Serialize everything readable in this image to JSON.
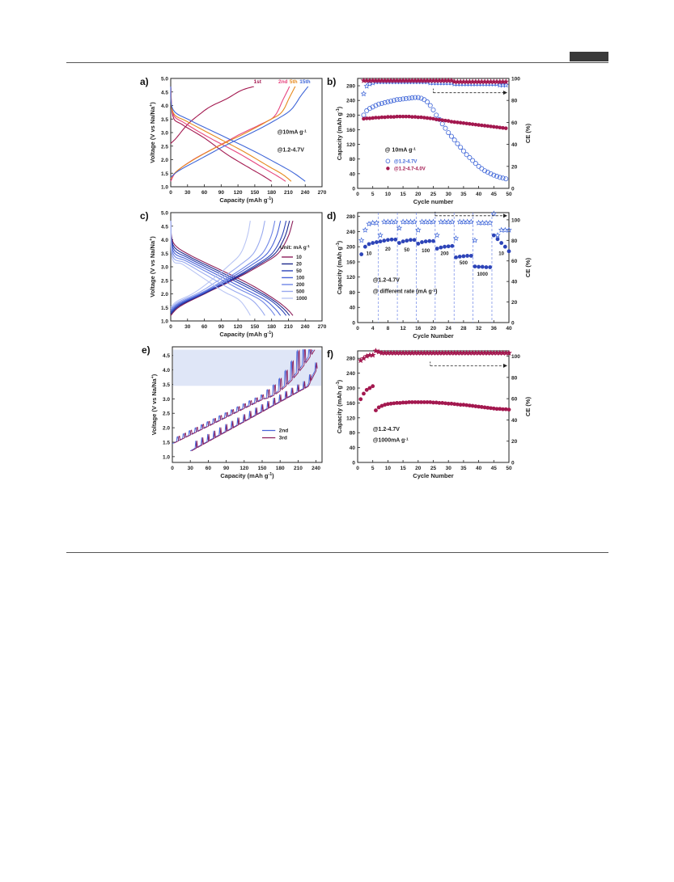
{
  "chart_data": [
    {
      "panel": "a)",
      "type": "line",
      "xlabel": "Capacity (mAh g",
      "xlabel_sup": "-1",
      "xlabel_end": ")",
      "ylabel": "Voltage (V vs Na/Na",
      "ylabel_sup": "+",
      "ylabel_end": ")",
      "xlim": [
        0,
        270
      ],
      "ylim": [
        1.0,
        5.0
      ],
      "xticks": [
        "0",
        "30",
        "60",
        "90",
        "120",
        "150",
        "180",
        "210",
        "240",
        "270"
      ],
      "yticks": [
        "1.0",
        "1.5",
        "2.0",
        "2.5",
        "3.0",
        "3.5",
        "4.0",
        "4.5",
        "5.0"
      ],
      "curve_labels": [
        {
          "text": "1st",
          "color": "#a3184f",
          "x": 148,
          "y": 4.82
        },
        {
          "text": "2nd",
          "color": "#e6457f",
          "x": 192,
          "y": 4.82
        },
        {
          "text": "5th",
          "color": "#e68a1e",
          "x": 212,
          "y": 4.82
        },
        {
          "text": "15th",
          "color": "#3f66d8",
          "x": 230,
          "y": 4.82
        }
      ],
      "annotations": [
        {
          "text": "@10mA g",
          "sup": "-1",
          "x": 190,
          "y": 2.95
        },
        {
          "text": "@1.2-4.7V",
          "x": 190,
          "y": 2.3
        }
      ],
      "series": [
        {
          "color": "#a3184f",
          "charge": [
            [
              0,
              2.6
            ],
            [
              10,
              2.8
            ],
            [
              30,
              3.3
            ],
            [
              50,
              3.65
            ],
            [
              70,
              3.95
            ],
            [
              100,
              4.25
            ],
            [
              125,
              4.55
            ],
            [
              148,
              4.7
            ]
          ],
          "discharge": [
            [
              0,
              4.7
            ],
            [
              4,
              3.6
            ],
            [
              20,
              3.3
            ],
            [
              60,
              2.8
            ],
            [
              100,
              2.2
            ],
            [
              140,
              1.7
            ],
            [
              165,
              1.4
            ],
            [
              180,
              1.2
            ]
          ]
        },
        {
          "color": "#e6457f",
          "charge": [
            [
              0,
              1.2
            ],
            [
              10,
              1.55
            ],
            [
              40,
              2.0
            ],
            [
              80,
              2.45
            ],
            [
              120,
              2.9
            ],
            [
              160,
              3.3
            ],
            [
              185,
              3.6
            ],
            [
              200,
              4.2
            ],
            [
              212,
              4.7
            ]
          ],
          "discharge": [
            [
              0,
              4.7
            ],
            [
              4,
              3.7
            ],
            [
              25,
              3.35
            ],
            [
              70,
              2.8
            ],
            [
              120,
              2.25
            ],
            [
              165,
              1.7
            ],
            [
              190,
              1.4
            ],
            [
              205,
              1.2
            ]
          ]
        },
        {
          "color": "#e68a1e",
          "charge": [
            [
              0,
              1.3
            ],
            [
              12,
              1.6
            ],
            [
              45,
              2.05
            ],
            [
              90,
              2.55
            ],
            [
              135,
              3.0
            ],
            [
              175,
              3.45
            ],
            [
              198,
              3.75
            ],
            [
              212,
              4.3
            ],
            [
              222,
              4.7
            ]
          ],
          "discharge": [
            [
              0,
              4.7
            ],
            [
              4,
              3.75
            ],
            [
              30,
              3.4
            ],
            [
              80,
              2.85
            ],
            [
              130,
              2.3
            ],
            [
              175,
              1.75
            ],
            [
              200,
              1.45
            ],
            [
              215,
              1.2
            ]
          ]
        },
        {
          "color": "#3f66d8",
          "charge": [
            [
              0,
              1.35
            ],
            [
              15,
              1.6
            ],
            [
              55,
              2.05
            ],
            [
              100,
              2.55
            ],
            [
              150,
              3.05
            ],
            [
              190,
              3.5
            ],
            [
              215,
              3.85
            ],
            [
              232,
              4.35
            ],
            [
              245,
              4.7
            ]
          ],
          "discharge": [
            [
              0,
              4.7
            ],
            [
              4,
              3.85
            ],
            [
              35,
              3.45
            ],
            [
              90,
              2.9
            ],
            [
              145,
              2.35
            ],
            [
              195,
              1.8
            ],
            [
              220,
              1.5
            ],
            [
              240,
              1.2
            ]
          ]
        }
      ]
    },
    {
      "panel": "b)",
      "type": "scatter",
      "xlabel": "Cycle number",
      "ylabel": "Capacity (mAh g",
      "ylabel_sup": "-1",
      "ylabel_end": ")",
      "ylabel_right": "CE (%)",
      "xlim": [
        0,
        50
      ],
      "ylim": [
        0,
        300
      ],
      "ylim_right": [
        0,
        100
      ],
      "xticks": [
        "0",
        "5",
        "10",
        "15",
        "20",
        "25",
        "30",
        "35",
        "40",
        "45",
        "50"
      ],
      "yticks": [
        "0",
        "40",
        "80",
        "120",
        "160",
        "200",
        "240",
        "280"
      ],
      "yticks_right": [
        "0",
        "20",
        "40",
        "60",
        "80",
        "100"
      ],
      "annotations": [
        {
          "text": "@ 10mA g",
          "sup": "-1",
          "x": 9,
          "y": 100
        }
      ],
      "legend": [
        {
          "name": "@1.2-4.7V",
          "color": "#3f66d8",
          "marker": "open-circle"
        },
        {
          "name": "@1.2-4.7-4.0V",
          "color": "#a3184f",
          "marker": "filled-circle"
        }
      ],
      "capacity_open": [
        200,
        212,
        218,
        222,
        226,
        230,
        232,
        234,
        236,
        238,
        240,
        242,
        243,
        244,
        245,
        246,
        247,
        248,
        248,
        246,
        242,
        236,
        226,
        214,
        200,
        188,
        176,
        164,
        152,
        142,
        132,
        122,
        112,
        102,
        92,
        84,
        76,
        68,
        60,
        54,
        48,
        44,
        40,
        36,
        33,
        30,
        28,
        26
      ],
      "capacity_filled": [
        190,
        191,
        191,
        192,
        193,
        193,
        194,
        194,
        195,
        195,
        195,
        196,
        196,
        196,
        196,
        196,
        195,
        195,
        194,
        194,
        193,
        192,
        191,
        190,
        188,
        187,
        186,
        185,
        184,
        182,
        181,
        180,
        179,
        178,
        177,
        176,
        175,
        174,
        173,
        172,
        171,
        170,
        169,
        168,
        167,
        166,
        165,
        164
      ],
      "ce_open_stars": [
        86,
        93,
        95,
        96,
        97,
        97,
        97,
        97,
        97,
        97,
        97,
        97,
        97,
        97,
        97,
        97,
        97,
        97,
        97,
        97,
        97,
        97,
        96,
        96,
        96,
        96,
        96,
        96,
        96,
        96,
        95,
        95,
        95,
        95,
        95,
        95,
        95,
        95,
        95,
        95,
        95,
        95,
        95,
        95,
        95,
        94,
        94,
        94
      ],
      "ce_filled_stars": [
        98,
        98,
        98,
        98,
        98,
        98,
        98,
        98,
        98,
        98,
        98,
        98,
        98,
        98,
        98,
        98,
        98,
        98,
        98,
        98,
        98,
        98,
        98,
        98,
        98,
        98,
        98,
        98,
        98,
        98,
        97,
        97,
        97,
        97,
        97,
        97,
        97,
        97,
        97,
        97,
        97,
        97,
        97,
        97,
        97,
        97,
        97,
        97
      ]
    },
    {
      "panel": "c)",
      "type": "line",
      "xlabel": "Capacity (mAh g",
      "xlabel_sup": "-1",
      "xlabel_end": ")",
      "ylabel": "Voltage (V vs Na/Na",
      "ylabel_sup": "+",
      "ylabel_end": ")",
      "xlim": [
        0,
        270
      ],
      "ylim": [
        1.0,
        5.0
      ],
      "xticks": [
        "0",
        "30",
        "60",
        "90",
        "120",
        "150",
        "180",
        "210",
        "240",
        "270"
      ],
      "yticks": [
        "1.0",
        "1.5",
        "2.0",
        "2.5",
        "3.0",
        "3.5",
        "4.0",
        "4.5",
        "5.0"
      ],
      "legend_title": "Unit: mA g",
      "legend_title_sup": "-1",
      "series": [
        {
          "name": "10",
          "color": "#8c1e5a",
          "cap": 218
        },
        {
          "name": "20",
          "color": "#1e2a8c",
          "cap": 212
        },
        {
          "name": "50",
          "color": "#2d44b8",
          "cap": 206
        },
        {
          "name": "100",
          "color": "#4a64d8",
          "cap": 196
        },
        {
          "name": "200",
          "color": "#6f86e6",
          "cap": 186
        },
        {
          "name": "500",
          "color": "#98a9ef",
          "cap": 168
        },
        {
          "name": "1000",
          "color": "#b9c5f4",
          "cap": 142
        }
      ]
    },
    {
      "panel": "d)",
      "type": "scatter",
      "xlabel": "Cycle Number",
      "ylabel": "Capacity (mAh g",
      "ylabel_sup": "-1",
      "ylabel_end": ")",
      "ylabel_right": "CE (%)",
      "xlim": [
        0,
        40
      ],
      "ylim": [
        0,
        290
      ],
      "ylim_right": [
        0,
        107
      ],
      "xticks": [
        "0",
        "4",
        "8",
        "12",
        "16",
        "20",
        "24",
        "28",
        "32",
        "36",
        "40"
      ],
      "yticks": [
        "0",
        "40",
        "80",
        "120",
        "160",
        "200",
        "240",
        "280"
      ],
      "yticks_right": [
        "0",
        "20",
        "40",
        "60",
        "80",
        "100"
      ],
      "annotations": [
        {
          "text": "@1.2-4.7V",
          "x": 4,
          "y": 108
        },
        {
          "text": "@ different rate (mA g",
          "sup": "-1",
          "end": ")",
          "x": 4,
          "y": 78
        }
      ],
      "rate_labels": [
        {
          "text": "10",
          "x": 3,
          "y": 178
        },
        {
          "text": "20",
          "x": 8,
          "y": 190
        },
        {
          "text": "50",
          "x": 13,
          "y": 188
        },
        {
          "text": "100",
          "x": 18,
          "y": 186
        },
        {
          "text": "200",
          "x": 23,
          "y": 178
        },
        {
          "text": "500",
          "x": 28,
          "y": 153
        },
        {
          "text": "1000",
          "x": 33,
          "y": 124
        },
        {
          "text": "10",
          "x": 38,
          "y": 178
        }
      ],
      "dividers": [
        5.5,
        10.5,
        15.5,
        20.5,
        25.5,
        30.5,
        35.5
      ],
      "capacity": [
        180,
        200,
        207,
        210,
        212,
        214,
        216,
        218,
        219,
        219,
        210,
        214,
        216,
        218,
        218,
        208,
        212,
        214,
        215,
        215,
        195,
        198,
        200,
        201,
        202,
        172,
        174,
        175,
        176,
        176,
        148,
        147,
        147,
        146,
        146,
        230,
        220,
        210,
        200,
        188
      ],
      "ce": [
        80,
        90,
        96,
        97,
        97,
        85,
        98,
        98,
        98,
        98,
        92,
        98,
        98,
        98,
        98,
        90,
        98,
        98,
        98,
        98,
        85,
        98,
        98,
        98,
        98,
        82,
        98,
        98,
        98,
        98,
        80,
        97,
        97,
        97,
        97,
        106,
        85,
        90,
        90,
        90
      ]
    },
    {
      "panel": "e)",
      "type": "line",
      "xlabel": "Capacity (mAh g",
      "xlabel_sup": "-1",
      "xlabel_end": ")",
      "ylabel": "Voltage (V vs Na/Na",
      "ylabel_sup": "+",
      "ylabel_end": ")",
      "xlim": [
        0,
        250
      ],
      "ylim": [
        0.8,
        4.8
      ],
      "xticks": [
        "0",
        "30",
        "60",
        "90",
        "120",
        "150",
        "180",
        "210",
        "240"
      ],
      "yticks": [
        "1.0",
        "1.5",
        "2.0",
        "2.5",
        "3.0",
        "3.5",
        "4.0",
        "4.5"
      ],
      "shaded_band": [
        3.45,
        4.7
      ],
      "series": [
        {
          "name": "2nd",
          "color": "#4a64d8"
        },
        {
          "name": "3rd",
          "color": "#8c1e5a"
        }
      ]
    },
    {
      "panel": "f)",
      "type": "scatter",
      "xlabel": "Cycle Number",
      "ylabel": "Capacity (mAh g",
      "ylabel_sup": "-1",
      "ylabel_end": ")",
      "ylabel_right": "CE (%)",
      "xlim": [
        0,
        50
      ],
      "ylim": [
        0,
        300
      ],
      "ylim_right": [
        0,
        105
      ],
      "xticks": [
        "0",
        "5",
        "10",
        "15",
        "20",
        "25",
        "30",
        "35",
        "40",
        "45",
        "50"
      ],
      "yticks": [
        "0",
        "40",
        "80",
        "120",
        "160",
        "200",
        "240",
        "280"
      ],
      "yticks_right": [
        "0",
        "20",
        "40",
        "60",
        "80",
        "100"
      ],
      "annotations": [
        {
          "text": "@1.2-4.7V",
          "x": 5,
          "y": 85
        },
        {
          "text": "@1000mA g",
          "sup": "-1",
          "x": 5,
          "y": 55
        }
      ],
      "capacity": [
        170,
        185,
        195,
        200,
        205,
        140,
        148,
        152,
        155,
        157,
        158,
        159,
        160,
        160,
        161,
        161,
        162,
        162,
        162,
        162,
        162,
        162,
        162,
        162,
        161,
        161,
        160,
        160,
        159,
        158,
        158,
        157,
        156,
        155,
        155,
        154,
        153,
        152,
        151,
        150,
        149,
        148,
        147,
        146,
        145,
        144,
        144,
        143,
        143,
        142
      ],
      "ce": [
        96,
        98,
        100,
        101,
        101,
        105,
        104,
        103,
        103,
        103,
        103,
        103,
        103,
        103,
        103,
        103,
        103,
        103,
        103,
        103,
        103,
        103,
        103,
        103,
        103,
        103,
        103,
        103,
        103,
        103,
        103,
        103,
        103,
        103,
        103,
        103,
        103,
        103,
        103,
        103,
        103,
        103,
        103,
        103,
        103,
        103,
        103,
        103,
        103,
        103
      ]
    }
  ]
}
